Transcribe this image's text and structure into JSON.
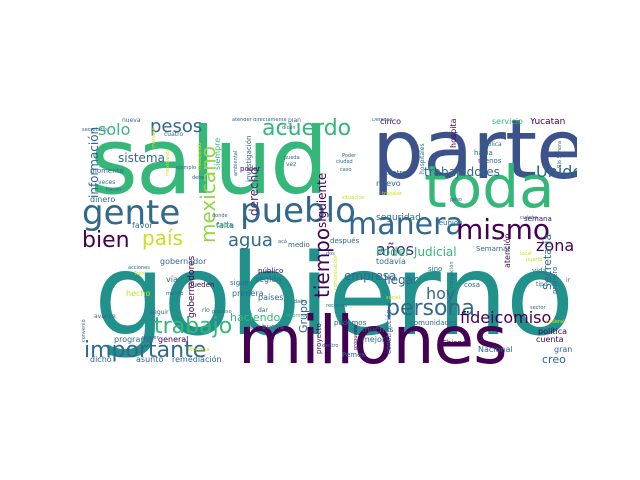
{
  "palette": {
    "dark_purple": "#440154",
    "indigo": "#3b528b",
    "slate_blue": "#31688e",
    "teal": "#21918c",
    "green": "#35b779",
    "lime": "#90d743",
    "yellow_green": "#c8e020",
    "blue_gray": "#46337e",
    "purple_mid": "#472d7b"
  },
  "words": [
    {
      "id": "gobierno",
      "text": "gobierno"
    },
    {
      "id": "salud",
      "text": "salud"
    },
    {
      "id": "parte",
      "text": "parte"
    },
    {
      "id": "millones",
      "text": "millones"
    },
    {
      "id": "toda",
      "text": "toda"
    },
    {
      "id": "pueblo",
      "text": "pueblo"
    },
    {
      "id": "manera",
      "text": "manera"
    },
    {
      "id": "gente",
      "text": "gente"
    },
    {
      "id": "mismo",
      "text": "mismo"
    },
    {
      "id": "acuerdo",
      "text": "acuerdo"
    },
    {
      "id": "importante",
      "text": "importante"
    },
    {
      "id": "persona",
      "text": "persona"
    },
    {
      "id": "trabajo",
      "text": "trabajo"
    },
    {
      "id": "pesos",
      "text": "pesos"
    },
    {
      "id": "mexicano",
      "text": "mexicano"
    },
    {
      "id": "bien",
      "text": "bien"
    },
    {
      "id": "pais",
      "text": "país"
    },
    {
      "id": "tiempo",
      "text": "tiempo"
    },
    {
      "id": "agua",
      "text": "agua"
    },
    {
      "id": "fideicomiso",
      "text": "fideicomiso"
    },
    {
      "id": "solo",
      "text": "solo"
    },
    {
      "id": "hoy",
      "text": "hoy"
    },
    {
      "id": "unidos",
      "text": "Unidos"
    },
    {
      "id": "anos",
      "text": "años"
    },
    {
      "id": "zona",
      "text": "zona"
    },
    {
      "id": "poder-judicial",
      "text": "Poder Judicial"
    },
    {
      "id": "sistema",
      "text": "sistema"
    },
    {
      "id": "derecho",
      "text": "derecho"
    },
    {
      "id": "informacion",
      "text": "información"
    },
    {
      "id": "empresa",
      "text": "empresa"
    },
    {
      "id": "llegar",
      "text": "llegar"
    },
    {
      "id": "siguiente",
      "text": "siguiente"
    },
    {
      "id": "trabajadores",
      "text": "trabajadores"
    },
    {
      "id": "grupo",
      "text": "Grupo"
    },
    {
      "id": "creo",
      "text": "creo"
    },
    {
      "id": "haciendo",
      "text": "haciendo"
    },
    {
      "id": "secretaria",
      "text": "Secretaría"
    },
    {
      "id": "seguridad",
      "text": "seguridad"
    },
    {
      "id": "yucatan",
      "text": "Yucatán"
    },
    {
      "id": "hospital",
      "text": "hospital"
    },
    {
      "id": "siempre",
      "text": "siempre"
    },
    {
      "id": "cinco",
      "text": "cinco"
    },
    {
      "id": "servicio",
      "text": "servicio"
    },
    {
      "id": "nuevo",
      "text": "nuevo"
    },
    {
      "id": "gobernadores",
      "text": "gobernadores"
    },
    {
      "id": "politica",
      "text": "política"
    },
    {
      "id": "nacional",
      "text": "Nacional"
    },
    {
      "id": "gran",
      "text": "gran"
    },
    {
      "id": "cuenta",
      "text": "cuenta"
    },
    {
      "id": "dicho",
      "text": "dicho"
    },
    {
      "id": "asunto",
      "text": "asunto"
    },
    {
      "id": "remediacion",
      "text": "remediación"
    },
    {
      "id": "programa",
      "text": "programa"
    },
    {
      "id": "general",
      "text": "general"
    },
    {
      "id": "muchas",
      "text": "muchas"
    },
    {
      "id": "mejor",
      "text": "mejor"
    },
    {
      "id": "pemex",
      "text": "Pemex"
    },
    {
      "id": "atencion",
      "text": "atención"
    },
    {
      "id": "cosa",
      "text": "cosa"
    },
    {
      "id": "via",
      "text": "vía"
    },
    {
      "id": "hecho",
      "text": "hecho"
    },
    {
      "id": "gobernador",
      "text": "gobernador"
    },
    {
      "id": "favor",
      "text": "favor"
    },
    {
      "id": "dinero",
      "text": "dinero"
    },
    {
      "id": "momento",
      "text": "momento"
    },
    {
      "id": "pueden",
      "text": "pueden"
    },
    {
      "id": "investigacion",
      "text": "investigación"
    },
    {
      "id": "primera",
      "text": "primera"
    },
    {
      "id": "region",
      "text": "región"
    },
    {
      "id": "paises",
      "text": "países"
    },
    {
      "id": "sigue",
      "text": "sigue"
    },
    {
      "id": "publico",
      "text": "público"
    },
    {
      "id": "medio",
      "text": "medio"
    },
    {
      "id": "falta",
      "text": "falta"
    },
    {
      "id": "poder",
      "text": "poder"
    },
    {
      "id": "cada",
      "text": "cada"
    },
    {
      "id": "despues",
      "text": "después"
    },
    {
      "id": "todavia",
      "text": "todavía"
    },
    {
      "id": "reunion",
      "text": "reunión"
    },
    {
      "id": "sino",
      "text": "sino"
    },
    {
      "id": "centro",
      "text": "centro"
    },
    {
      "id": "hacia",
      "text": "hacia"
    },
    {
      "id": "menos",
      "text": "menos"
    },
    {
      "id": "semana",
      "text": "semana"
    },
    {
      "id": "semarnat",
      "text": "Semarnat"
    },
    {
      "id": "primero",
      "text": "primero"
    },
    {
      "id": "vida",
      "text": "vida"
    },
    {
      "id": "chiapas",
      "text": "Chiapas"
    },
    {
      "id": "comunidades",
      "text": "comunidades"
    },
    {
      "id": "construccion",
      "text": "construcción"
    },
    {
      "id": "podemos",
      "text": "podemos"
    },
    {
      "id": "proyecto",
      "text": "proyecto"
    },
    {
      "id": "buena",
      "text": "buena"
    },
    {
      "id": "secretario",
      "text": "secretario"
    },
    {
      "id": "nueva",
      "text": "nueva"
    },
    {
      "id": "cuatro",
      "text": "cuatro"
    },
    {
      "id": "atender-directamente",
      "text": "atender directamente"
    },
    {
      "id": "plan",
      "text": "plan"
    },
    {
      "id": "vez",
      "text": "vez"
    },
    {
      "id": "defensa",
      "text": "Defensa"
    },
    {
      "id": "hospitales",
      "text": "hospitales"
    },
    {
      "id": "publica",
      "text": "pública"
    },
    {
      "id": "avance",
      "text": "avance"
    },
    {
      "id": "seguir",
      "text": "seguir"
    },
    {
      "id": "dar",
      "text": "dar"
    },
    {
      "id": "veces",
      "text": "veces"
    },
    {
      "id": "hacen",
      "text": "hacen"
    },
    {
      "id": "acciones",
      "text": "acciones"
    },
    {
      "id": "mundo",
      "text": "mundo"
    },
    {
      "id": "rio",
      "text": "río"
    },
    {
      "id": "dano",
      "text": "daño"
    },
    {
      "id": "tipo",
      "text": "tipo"
    },
    {
      "id": "cuanto",
      "text": "cuánto"
    },
    {
      "id": "federal",
      "text": "Federal"
    },
    {
      "id": "ejemplo",
      "text": "ejemplo"
    },
    {
      "id": "debe",
      "text": "debe"
    },
    {
      "id": "proceso",
      "text": "proceso"
    },
    {
      "id": "social",
      "text": "social"
    },
    {
      "id": "dicen",
      "text": "dicen"
    },
    {
      "id": "pueda",
      "text": "pueda"
    },
    {
      "id": "ciudad",
      "text": "ciudad"
    },
    {
      "id": "caso",
      "text": "caso"
    },
    {
      "id": "ambiental",
      "text": "ambiental"
    },
    {
      "id": "manana",
      "text": "mañana"
    },
    {
      "id": "peso",
      "text": "peso"
    },
    {
      "id": "donde",
      "text": "donde"
    },
    {
      "id": "convenio",
      "text": "convenio"
    },
    {
      "id": "propuesta",
      "text": "propuesta"
    },
    {
      "id": "informe",
      "text": "informe"
    },
    {
      "id": "primer",
      "text": "primer"
    },
    {
      "id": "rio-sonora",
      "text": "Río Sonora"
    },
    {
      "id": "trabajando",
      "text": "trabajando"
    },
    {
      "id": "comunicacion",
      "text": "comunicación"
    },
    {
      "id": "trabajar",
      "text": "trabajar"
    },
    {
      "id": "tren",
      "text": "Tren"
    },
    {
      "id": "corrupcion",
      "text": "corrupción"
    },
    {
      "id": "puerto",
      "text": "puerto"
    },
    {
      "id": "recursos",
      "text": "recursos"
    },
    {
      "id": "situacion",
      "text": "situación"
    },
    {
      "id": "poder-small",
      "text": "Poder"
    },
    {
      "id": "promesa",
      "text": "Promesa"
    },
    {
      "id": "local",
      "text": "local"
    },
    {
      "id": "fin",
      "text": "fin"
    },
    {
      "id": "aca",
      "text": "acá"
    },
    {
      "id": "mexicanos",
      "text": "mexicanos"
    },
    {
      "id": "sector",
      "text": "sector"
    },
    {
      "id": "ir",
      "text": "ir"
    },
    {
      "id": "dentro",
      "text": "dentro"
    },
    {
      "id": "dos",
      "text": "dos"
    }
  ]
}
